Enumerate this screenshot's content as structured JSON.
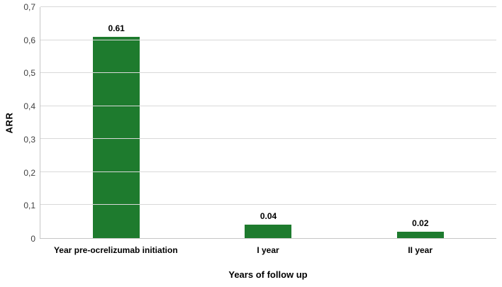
{
  "chart_data": {
    "type": "bar",
    "title": "",
    "categories": [
      "Year pre-ocrelizumab initiation",
      "I year",
      "II year"
    ],
    "values": [
      0.61,
      0.04,
      0.02
    ],
    "data_labels": [
      "0.61",
      "0.04",
      "0.02"
    ],
    "xlabel": "Years of follow up",
    "ylabel": "ARR",
    "ylim": [
      0,
      0.7
    ],
    "ytick_values": [
      0,
      0.1,
      0.2,
      0.3,
      0.4,
      0.5,
      0.6,
      0.7
    ],
    "ytick_labels": [
      "0",
      "0,1",
      "0,2",
      "0,3",
      "0,4",
      "0,5",
      "0,6",
      "0,7"
    ],
    "bar_color": "#1e7b2e",
    "gridline_color": "#d9d9d9",
    "axis_color": "#c6c6c6",
    "grid": true,
    "legend_position": "none",
    "background_color": "#ffffff"
  }
}
